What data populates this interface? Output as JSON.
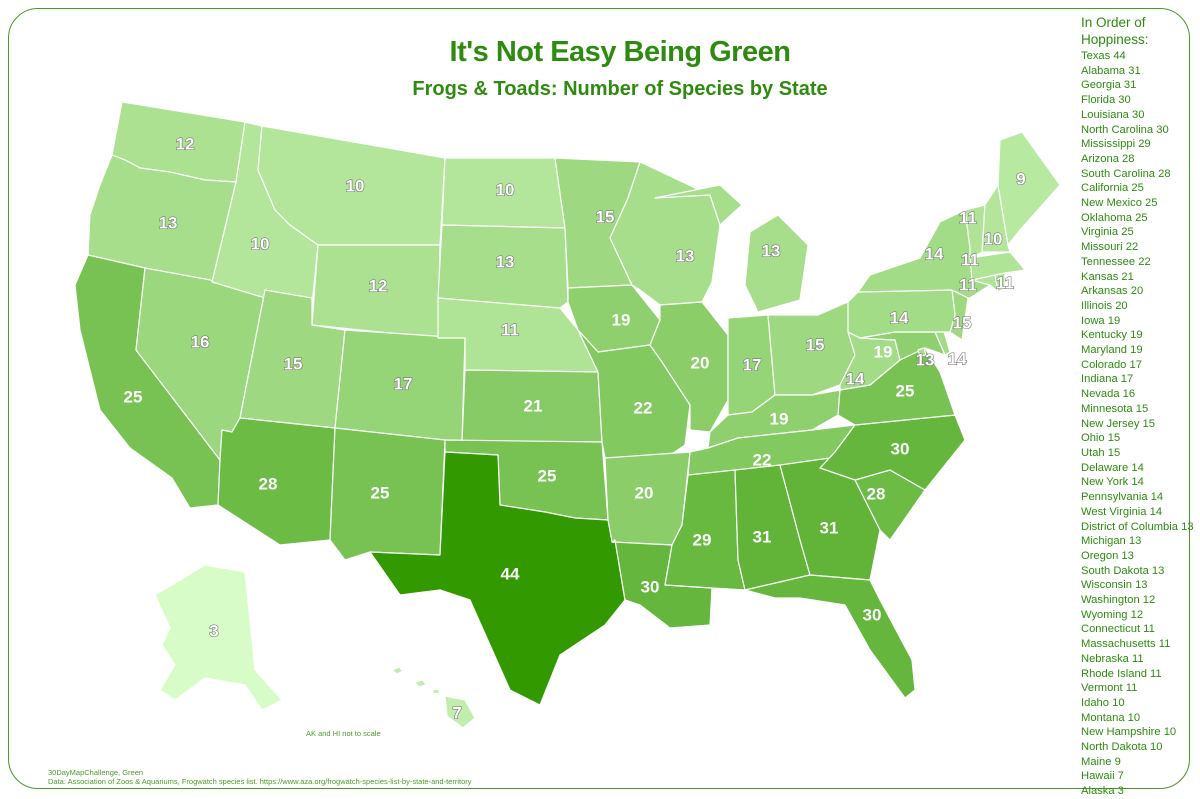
{
  "title": "It's Not Easy Being Green",
  "subtitle": "Frogs & Toads: Number of Species by State",
  "legend": {
    "heading_line1": "In Order of",
    "heading_line2": "Hoppiness:",
    "items": [
      "Texas 44",
      "Alabama 31",
      "Georgia 31",
      "Florida 30",
      "Louisiana 30",
      "North Carolina 30",
      "Mississippi 29",
      "Arizona 28",
      "South Carolina 28",
      "California 25",
      "New Mexico 25",
      "Oklahoma 25",
      "Virginia 25",
      "Missouri 22",
      "Tennessee 22",
      "Kansas 21",
      "Arkansas 20",
      "Illinois 20",
      "Iowa 19",
      "Kentucky 19",
      "Maryland 19",
      "Colorado 17",
      "Indiana 17",
      "Nevada 16",
      "Minnesota 15",
      "New Jersey 15",
      "Ohio 15",
      "Utah 15",
      "Delaware 14",
      "New York 14",
      "Pennsylvania 14",
      "West Virginia 14",
      "District of Columbia 13",
      "Michigan 13",
      "Oregon 13",
      "South Dakota 13",
      "Wisconsin 13",
      "Washington 12",
      "Wyoming 12",
      "Connecticut 11",
      "Massachusetts 11",
      "Nebraska 11",
      "Rhode Island 11",
      "Vermont 11",
      "Idaho 10",
      "Montana 10",
      "New Hampshire 10",
      "North Dakota 10",
      "Maine 9",
      "Hawaii 7",
      "Alaska 3"
    ]
  },
  "scale_note": "AK and HI not to scale",
  "credit_line1": "30DayMapChallenge, Green",
  "credit_line2": "Data: Association of Zoos & Aquariums, Frogwatch species list. https://www.aza.org/frogwatch-species-list-by-state-and-territory",
  "colors": {
    "title": "#2e8b10",
    "scale_low": "#d8fcc8",
    "scale_high": "#339900"
  },
  "states": [
    {
      "id": "WA",
      "value": "12"
    },
    {
      "id": "OR",
      "value": "13"
    },
    {
      "id": "CA",
      "value": "25"
    },
    {
      "id": "NV",
      "value": "16"
    },
    {
      "id": "ID",
      "value": "10"
    },
    {
      "id": "MT",
      "value": "10"
    },
    {
      "id": "WY",
      "value": "12"
    },
    {
      "id": "UT",
      "value": "15"
    },
    {
      "id": "AZ",
      "value": "28"
    },
    {
      "id": "CO",
      "value": "17"
    },
    {
      "id": "NM",
      "value": "25"
    },
    {
      "id": "ND",
      "value": "10"
    },
    {
      "id": "SD",
      "value": "13"
    },
    {
      "id": "NE",
      "value": "11"
    },
    {
      "id": "KS",
      "value": "21"
    },
    {
      "id": "OK",
      "value": "25"
    },
    {
      "id": "TX",
      "value": "44"
    },
    {
      "id": "MN",
      "value": "15"
    },
    {
      "id": "IA",
      "value": "19"
    },
    {
      "id": "MO",
      "value": "22"
    },
    {
      "id": "AR",
      "value": "20"
    },
    {
      "id": "LA",
      "value": "30"
    },
    {
      "id": "WI",
      "value": "13"
    },
    {
      "id": "IL",
      "value": "20"
    },
    {
      "id": "MI",
      "value": "13"
    },
    {
      "id": "IN",
      "value": "17"
    },
    {
      "id": "OH",
      "value": "15"
    },
    {
      "id": "KY",
      "value": "19"
    },
    {
      "id": "TN",
      "value": "22"
    },
    {
      "id": "MS",
      "value": "29"
    },
    {
      "id": "AL",
      "value": "31"
    },
    {
      "id": "GA",
      "value": "31"
    },
    {
      "id": "FL",
      "value": "30"
    },
    {
      "id": "SC",
      "value": "28"
    },
    {
      "id": "NC",
      "value": "30"
    },
    {
      "id": "VA",
      "value": "25"
    },
    {
      "id": "WV",
      "value": "14"
    },
    {
      "id": "MD",
      "value": "19"
    },
    {
      "id": "DE",
      "value": "14"
    },
    {
      "id": "DC",
      "value": "13"
    },
    {
      "id": "NJ",
      "value": "15"
    },
    {
      "id": "PA",
      "value": "14"
    },
    {
      "id": "NY",
      "value": "14"
    },
    {
      "id": "CT",
      "value": "11"
    },
    {
      "id": "RI",
      "value": "11"
    },
    {
      "id": "MA",
      "value": "11"
    },
    {
      "id": "VT",
      "value": "11"
    },
    {
      "id": "NH",
      "value": "10"
    },
    {
      "id": "ME",
      "value": "9"
    },
    {
      "id": "AK",
      "value": "3"
    },
    {
      "id": "HI",
      "value": "7"
    }
  ]
}
